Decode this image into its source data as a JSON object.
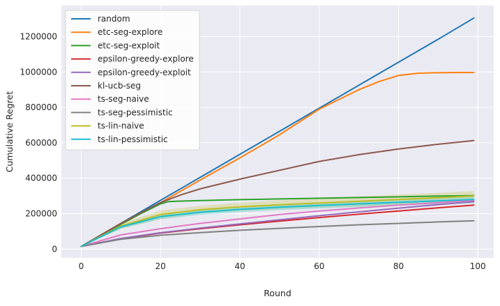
{
  "chart_data": {
    "type": "line",
    "title": "",
    "xlabel": "Round",
    "ylabel": "Cumulative Regret",
    "xlim": [
      -5,
      104
    ],
    "ylim": [
      -50000,
      1375000
    ],
    "xticks": [
      0,
      20,
      40,
      60,
      80,
      100
    ],
    "yticks": [
      0,
      200000,
      400000,
      600000,
      800000,
      1000000,
      1200000
    ],
    "grid": true,
    "style": "seaborn-darkgrid",
    "background": "#eaeaf2",
    "legend_position": "top-left",
    "series": [
      {
        "name": "random",
        "color": "#1f77b4",
        "x": [
          0,
          10,
          20,
          30,
          40,
          50,
          60,
          70,
          80,
          90,
          99
        ],
        "y": [
          15000,
          145000,
          275000,
          405000,
          535000,
          665000,
          795000,
          925000,
          1055000,
          1185000,
          1305000
        ]
      },
      {
        "name": "etc-seg-explore",
        "color": "#ff7f0e",
        "x": [
          0,
          10,
          20,
          30,
          40,
          50,
          60,
          70,
          75,
          80,
          85,
          90,
          95,
          99
        ],
        "y": [
          15000,
          140000,
          262000,
          390000,
          515000,
          645000,
          790000,
          900000,
          945000,
          980000,
          993000,
          996000,
          997000,
          997000
        ]
      },
      {
        "name": "etc-seg-exploit",
        "color": "#2ca02c",
        "x": [
          0,
          5,
          10,
          15,
          20,
          22,
          25,
          30,
          40,
          50,
          60,
          70,
          80,
          90,
          99
        ],
        "y": [
          15000,
          78000,
          140000,
          200000,
          255000,
          268000,
          271000,
          274000,
          279000,
          283000,
          287000,
          291000,
          295000,
          299000,
          302000
        ]
      },
      {
        "name": "epsilon-greedy-explore",
        "color": "#d62728",
        "x": [
          0,
          10,
          20,
          30,
          40,
          50,
          60,
          70,
          80,
          90,
          99
        ],
        "y": [
          15000,
          58000,
          90000,
          115000,
          137000,
          158000,
          178000,
          197000,
          215000,
          233000,
          248000
        ]
      },
      {
        "name": "epsilon-greedy-exploit",
        "color": "#9467bd",
        "x": [
          0,
          10,
          20,
          30,
          40,
          50,
          60,
          70,
          80,
          90,
          99
        ],
        "y": [
          15000,
          60000,
          92000,
          118000,
          142000,
          165000,
          188000,
          210000,
          231000,
          251000,
          268000
        ]
      },
      {
        "name": "kl-ucb-seg",
        "color": "#8c564b",
        "x": [
          0,
          5,
          10,
          15,
          20,
          25,
          30,
          40,
          50,
          60,
          70,
          80,
          90,
          99
        ],
        "y": [
          15000,
          80000,
          145000,
          205000,
          262000,
          305000,
          340000,
          395000,
          445000,
          495000,
          533000,
          565000,
          592000,
          613000
        ]
      },
      {
        "name": "ts-seg-naive",
        "color": "#e377c2",
        "x": [
          0,
          10,
          20,
          30,
          40,
          50,
          60,
          70,
          80,
          90,
          99
        ],
        "y": [
          15000,
          80000,
          115000,
          145000,
          170000,
          195000,
          215000,
          232000,
          248000,
          262000,
          275000
        ]
      },
      {
        "name": "ts-seg-pessimistic",
        "color": "#7f7f7f",
        "x": [
          0,
          10,
          20,
          30,
          40,
          50,
          60,
          70,
          80,
          90,
          99
        ],
        "y": [
          15000,
          55000,
          78000,
          93000,
          106000,
          117000,
          127000,
          137000,
          145000,
          153000,
          160000
        ]
      },
      {
        "name": "ts-lin-naive",
        "color": "#bcbd22",
        "x": [
          0,
          10,
          20,
          30,
          40,
          50,
          60,
          70,
          80,
          90,
          99
        ],
        "y": [
          15000,
          130000,
          195000,
          222000,
          238000,
          250000,
          260000,
          270000,
          280000,
          290000,
          300000
        ],
        "band_lower": [
          15000,
          115000,
          170000,
          200000,
          215000,
          225000,
          233000,
          240000,
          248000,
          255000,
          262000
        ],
        "band_upper": [
          15000,
          145000,
          218000,
          245000,
          262000,
          275000,
          287000,
          298000,
          308000,
          318000,
          328000
        ]
      },
      {
        "name": "ts-lin-pessimistic",
        "color": "#17becf",
        "x": [
          0,
          10,
          20,
          30,
          40,
          50,
          60,
          70,
          80,
          90,
          99
        ],
        "y": [
          15000,
          125000,
          183000,
          208000,
          224000,
          236000,
          246000,
          255000,
          264000,
          272000,
          280000
        ],
        "band_lower": [
          15000,
          115000,
          168000,
          193000,
          208000,
          220000,
          229000,
          237000,
          245000,
          252000,
          258000
        ],
        "band_upper": [
          15000,
          135000,
          198000,
          223000,
          240000,
          252000,
          263000,
          273000,
          283000,
          292000,
          302000
        ]
      }
    ]
  }
}
